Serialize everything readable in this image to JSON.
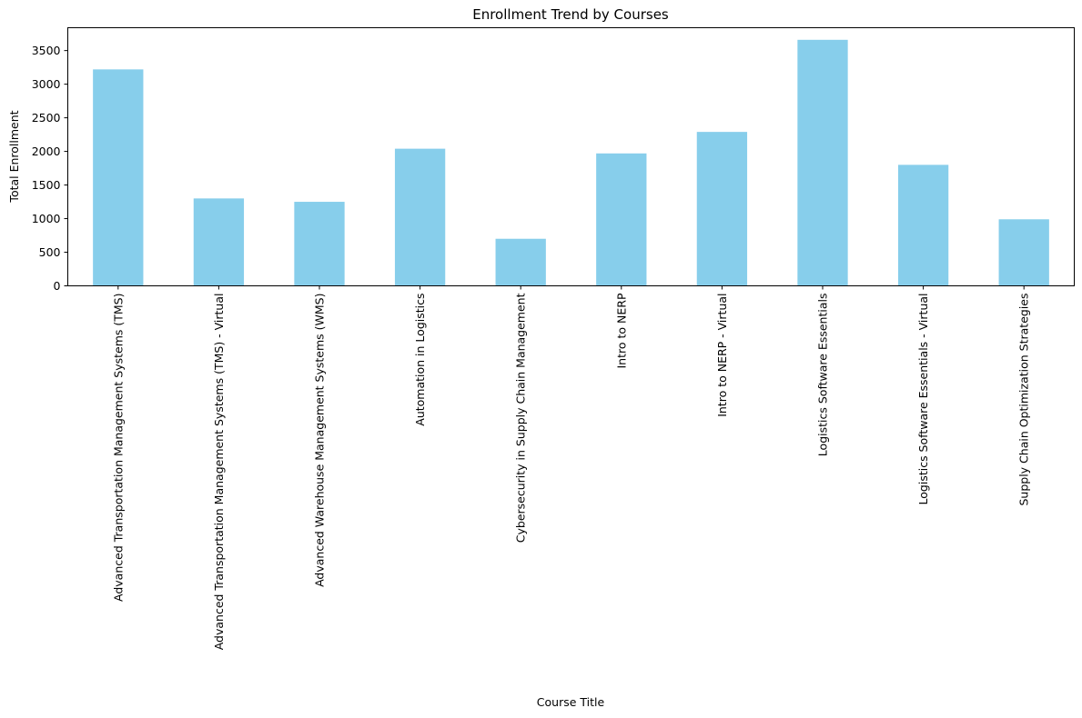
{
  "chart_data": {
    "type": "bar",
    "title": "Enrollment Trend by Courses",
    "xlabel": "Course Title",
    "ylabel": "Total Enrollment",
    "categories": [
      "Advanced Transportation Management Systems (TMS)",
      "Advanced Transportation Management Systems (TMS) - Virtual",
      "Advanced Warehouse Management Systems (WMS)",
      "Automation in Logistics",
      "Cybersecurity in Supply Chain Management",
      "Intro to NERP",
      "Intro to NERP - Virtual",
      "Logistics Software Essentials",
      "Logistics Software Essentials - Virtual",
      "Supply Chain Optimization Strategies"
    ],
    "values": [
      3220,
      1300,
      1250,
      2040,
      700,
      1970,
      2290,
      3660,
      1800,
      990
    ],
    "ylim": [
      0,
      3840
    ],
    "yticks": [
      0,
      500,
      1000,
      1500,
      2000,
      2500,
      3000,
      3500
    ],
    "grid": false,
    "bar_color": "#87ceeb"
  }
}
